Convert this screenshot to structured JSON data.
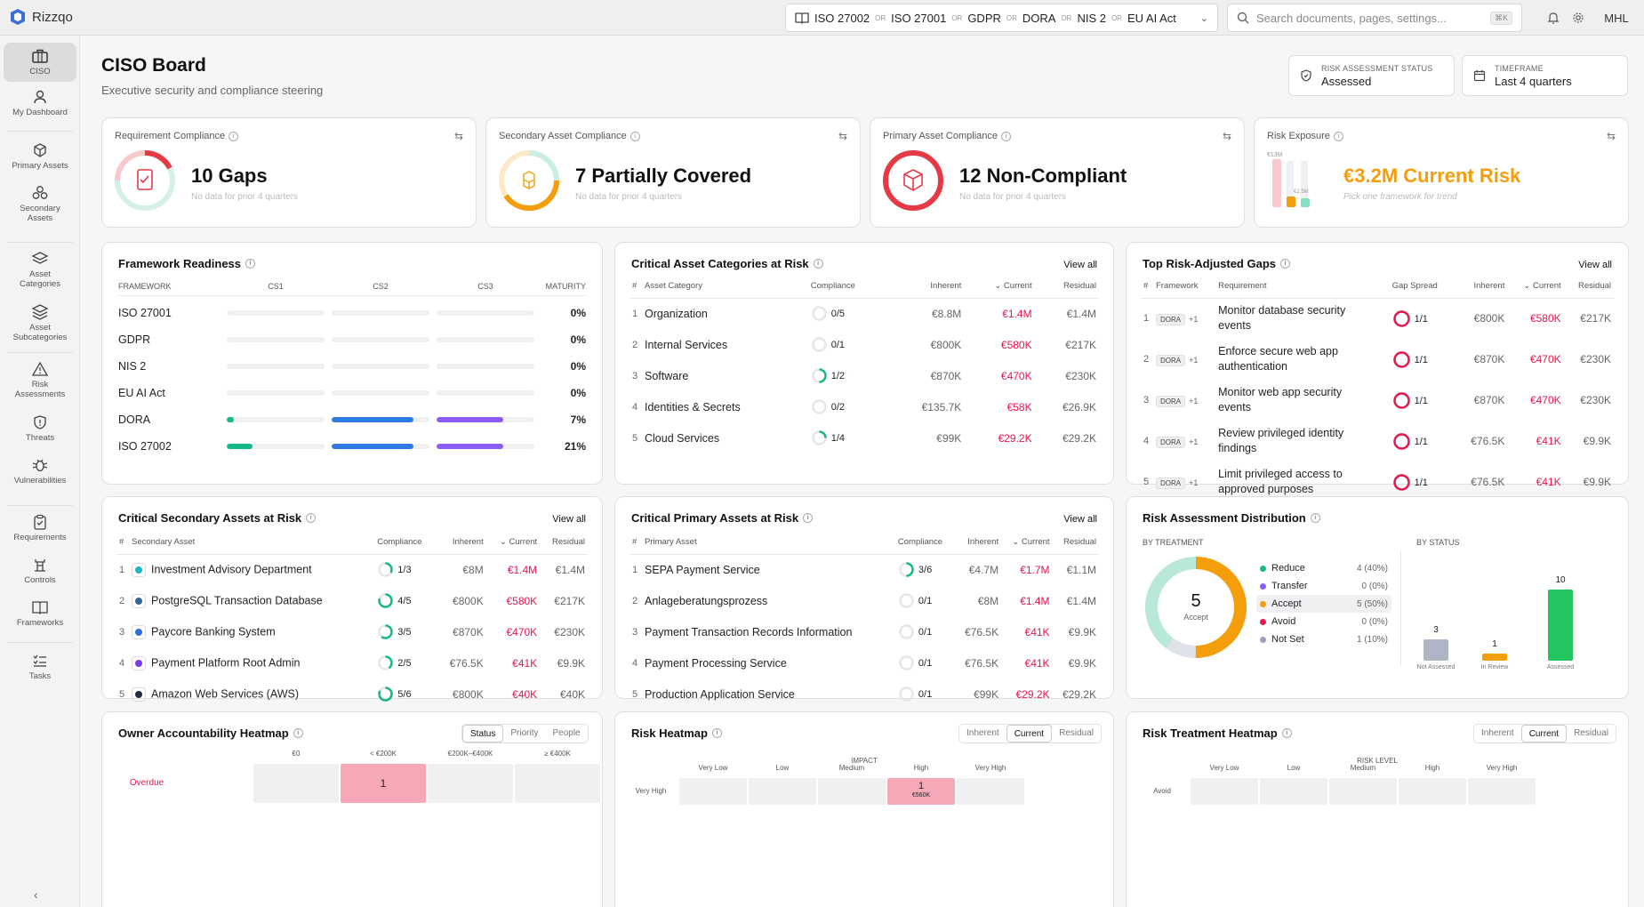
{
  "app": {
    "name": "Rizzqo",
    "user": "MHL"
  },
  "frameworks": [
    "ISO 27002",
    "ISO 27001",
    "GDPR",
    "DORA",
    "NIS 2",
    "EU AI Act"
  ],
  "framework_sep": "OR",
  "search": {
    "placeholder": "Search documents, pages, settings...",
    "shortcut": "⌘K"
  },
  "nav": [
    "CISO",
    "My Dashboard",
    "Primary Assets",
    "Secondary Assets",
    "Asset Categories",
    "Asset Subcategories",
    "Risk Assessments",
    "Threats",
    "Vulnerabilities",
    "Requirements",
    "Controls",
    "Frameworks",
    "Tasks"
  ],
  "page": {
    "title": "CISO Board",
    "subtitle": "Executive security and compliance steering"
  },
  "status": {
    "label": "RISK ASSESSMENT STATUS",
    "value": "Assessed"
  },
  "timeframe": {
    "label": "TIMEFRAME",
    "value": "Last 4 quarters"
  },
  "kpis": [
    {
      "title": "Requirement Compliance",
      "value": "10 Gaps",
      "sub": "No data for prior 4 quarters",
      "color": "#e53946"
    },
    {
      "title": "Secondary Asset Compliance",
      "value": "7 Partially Covered",
      "sub": "No data for prior 4 quarters",
      "color": "#f59e0b"
    },
    {
      "title": "Primary Asset Compliance",
      "value": "12 Non-Compliant",
      "sub": "No data for prior 4 quarters",
      "color": "#e53946"
    },
    {
      "title": "Risk Exposure",
      "value": "€3.2M Current Risk",
      "sub": "Pick one framework for trend",
      "color": "#f59e0b",
      "mini": [
        "€13M",
        "€2.5M"
      ]
    }
  ],
  "readiness": {
    "title": "Framework Readiness",
    "headers": [
      "FRAMEWORK",
      "CS1",
      "CS2",
      "CS3",
      "MATURITY"
    ],
    "rows": [
      {
        "name": "ISO 27001",
        "maturity": "0%",
        "cs1": 0,
        "cs2": 0,
        "cs3": 0
      },
      {
        "name": "GDPR",
        "maturity": "0%",
        "cs1": 0,
        "cs2": 0,
        "cs3": 0
      },
      {
        "name": "NIS 2",
        "maturity": "0%",
        "cs1": 0,
        "cs2": 0,
        "cs3": 0
      },
      {
        "name": "EU AI Act",
        "maturity": "0%",
        "cs1": 0,
        "cs2": 0,
        "cs3": 0
      },
      {
        "name": "DORA",
        "maturity": "7%",
        "cs1": 0.07,
        "cs2": 0.84,
        "cs3": 0.68
      },
      {
        "name": "ISO 27002",
        "maturity": "21%",
        "cs1": 0.26,
        "cs2": 0.84,
        "cs3": 0.68
      }
    ]
  },
  "asset_categories": {
    "title": "Critical Asset Categories at Risk",
    "viewall": "View all",
    "headers": [
      "#",
      "Asset Category",
      "Compliance",
      "Inherent",
      "Current",
      "Residual"
    ],
    "rows": [
      {
        "name": "Organization",
        "comp": "0/5",
        "frac": 0,
        "inh": "€8.8M",
        "cur": "€1.4M",
        "res": "€1.4M"
      },
      {
        "name": "Internal Services",
        "comp": "0/1",
        "frac": 0,
        "inh": "€800K",
        "cur": "€580K",
        "res": "€217K"
      },
      {
        "name": "Software",
        "comp": "1/2",
        "frac": 0.5,
        "inh": "€870K",
        "cur": "€470K",
        "res": "€230K"
      },
      {
        "name": "Identities & Secrets",
        "comp": "0/2",
        "frac": 0,
        "inh": "€135.7K",
        "cur": "€58K",
        "res": "€26.9K"
      },
      {
        "name": "Cloud Services",
        "comp": "1/4",
        "frac": 0.25,
        "inh": "€99K",
        "cur": "€29.2K",
        "res": "€29.2K"
      }
    ]
  },
  "gaps": {
    "title": "Top Risk-Adjusted Gaps",
    "viewall": "View all",
    "headers": [
      "#",
      "Framework",
      "Requirement",
      "Gap Spread",
      "Inherent",
      "Current",
      "Residual"
    ],
    "rows": [
      {
        "fw": "DORA",
        "more": "+1",
        "req": [
          "Monitor database security",
          "events"
        ],
        "spread": "1/1",
        "inh": "€800K",
        "cur": "€580K",
        "res": "€217K"
      },
      {
        "fw": "DORA",
        "more": "+1",
        "req": [
          "Enforce secure web app",
          "authentication"
        ],
        "spread": "1/1",
        "inh": "€870K",
        "cur": "€470K",
        "res": "€230K"
      },
      {
        "fw": "DORA",
        "more": "+1",
        "req": [
          "Monitor web app security",
          "events"
        ],
        "spread": "1/1",
        "inh": "€870K",
        "cur": "€470K",
        "res": "€230K"
      },
      {
        "fw": "DORA",
        "more": "+1",
        "req": [
          "Review privileged identity",
          "findings"
        ],
        "spread": "1/1",
        "inh": "€76.5K",
        "cur": "€41K",
        "res": "€9.9K"
      },
      {
        "fw": "DORA",
        "more": "+1",
        "req": [
          "Limit privileged access to",
          "approved purposes"
        ],
        "spread": "1/1",
        "inh": "€76.5K",
        "cur": "€41K",
        "res": "€9.9K"
      }
    ]
  },
  "secondary": {
    "title": "Critical Secondary Assets at Risk",
    "viewall": "View all",
    "headers": [
      "#",
      "Secondary Asset",
      "Compliance",
      "Inherent",
      "Current",
      "Residual"
    ],
    "rows": [
      {
        "name": "Investment Advisory Department",
        "comp": "1/3",
        "frac": 0.33,
        "inh": "€8M",
        "cur": "€1.4M",
        "res": "€1.4M",
        "ic": "#1fb5c9"
      },
      {
        "name": "PostgreSQL Transaction Database",
        "comp": "4/5",
        "frac": 0.8,
        "inh": "€800K",
        "cur": "€580K",
        "res": "€217K",
        "ic": "#336791"
      },
      {
        "name": "Paycore Banking System",
        "comp": "3/5",
        "frac": 0.6,
        "inh": "€870K",
        "cur": "€470K",
        "res": "€230K",
        "ic": "#2f6fd6"
      },
      {
        "name": "Payment Platform Root Admin",
        "comp": "2/5",
        "frac": 0.4,
        "inh": "€76.5K",
        "cur": "€41K",
        "res": "€9.9K",
        "ic": "#7c3aed"
      },
      {
        "name": "Amazon Web Services (AWS)",
        "comp": "5/6",
        "frac": 0.83,
        "inh": "€800K",
        "cur": "€40K",
        "res": "€40K",
        "ic": "#232f3e"
      }
    ]
  },
  "primary": {
    "title": "Critical Primary Assets at Risk",
    "viewall": "View all",
    "headers": [
      "#",
      "Primary Asset",
      "Compliance",
      "Inherent",
      "Current",
      "Residual"
    ],
    "rows": [
      {
        "name": "SEPA Payment Service",
        "comp": "3/6",
        "frac": 0.5,
        "inh": "€4.7M",
        "cur": "€1.7M",
        "res": "€1.1M"
      },
      {
        "name": "Anlageberatungsprozess",
        "comp": "0/1",
        "frac": 0,
        "inh": "€8M",
        "cur": "€1.4M",
        "res": "€1.4M"
      },
      {
        "name": "Payment Transaction Records Information",
        "comp": "0/1",
        "frac": 0,
        "inh": "€76.5K",
        "cur": "€41K",
        "res": "€9.9K"
      },
      {
        "name": "Payment Processing Service",
        "comp": "0/1",
        "frac": 0,
        "inh": "€76.5K",
        "cur": "€41K",
        "res": "€9.9K"
      },
      {
        "name": "Production Application Service",
        "comp": "0/1",
        "frac": 0,
        "inh": "€99K",
        "cur": "€29.2K",
        "res": "€29.2K"
      }
    ]
  },
  "distribution": {
    "title": "Risk Assessment Distribution",
    "by_treatment": "BY TREATMENT",
    "by_status": "BY STATUS",
    "center_value": "5",
    "center_label": "Accept",
    "treatments": [
      {
        "name": "Reduce",
        "val": "4 (40%)",
        "count": 4,
        "color": "#14b88a"
      },
      {
        "name": "Transfer",
        "val": "0 (0%)",
        "count": 0,
        "color": "#8b5cf6"
      },
      {
        "name": "Accept",
        "val": "5 (50%)",
        "count": 5,
        "color": "#f59e0b"
      },
      {
        "name": "Avoid",
        "val": "0 (0%)",
        "count": 0,
        "color": "#e5174d"
      },
      {
        "name": "Not Set",
        "val": "1 (10%)",
        "count": 1,
        "color": "#9aa3b5"
      }
    ],
    "status": [
      {
        "name": "Not Assessed",
        "count": 3,
        "color": "#9aa3b5"
      },
      {
        "name": "In Review",
        "count": 1,
        "color": "#f59e0b"
      },
      {
        "name": "Assessed",
        "count": 10,
        "color": "#22c55e"
      }
    ]
  },
  "owner_heatmap": {
    "title": "Owner Accountability Heatmap",
    "tabs": [
      "Status",
      "Priority",
      "People"
    ],
    "cols": [
      "€0",
      "< €200K",
      "€200K–€400K",
      "≥ €400K"
    ],
    "row": "Overdue",
    "highlight_value": "1"
  },
  "risk_heatmap": {
    "title": "Risk Heatmap",
    "tabs": [
      "Inherent",
      "Current",
      "Residual"
    ],
    "axis": "IMPACT",
    "cols": [
      "Very Low",
      "Low",
      "Medium",
      "High",
      "Very High"
    ],
    "row": "Very High",
    "cell_value": "1",
    "cell_amount": "€560K"
  },
  "treatment_heatmap": {
    "title": "Risk Treatment Heatmap",
    "tabs": [
      "Inherent",
      "Current",
      "Residual"
    ],
    "axis": "RISK LEVEL",
    "cols": [
      "Very Low",
      "Low",
      "Medium",
      "High",
      "Very High"
    ],
    "row": "Avoid"
  }
}
